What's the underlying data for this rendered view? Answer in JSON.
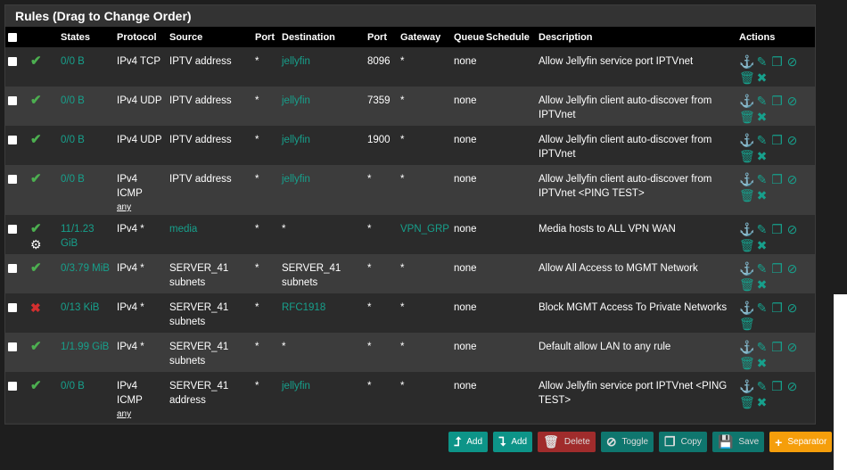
{
  "panel_title": "Rules (Drag to Change Order)",
  "columns": [
    "",
    "",
    "States",
    "Protocol",
    "Source",
    "Port",
    "Destination",
    "Port",
    "Gateway",
    "Queue",
    "Schedule",
    "Description",
    "Actions"
  ],
  "rules": [
    {
      "status": "pass",
      "states": "0/0 B",
      "protocol": "IPv4 TCP",
      "protocol_sub": "",
      "source": "IPTV address",
      "source_link": false,
      "sport": "*",
      "dest": "jellyfin",
      "dest_link": true,
      "dport": "8096",
      "gateway": "*",
      "gateway_link": false,
      "queue": "none",
      "schedule": "",
      "description": "Allow Jellyfin service port IPTVnet",
      "advanced": false,
      "removable": true
    },
    {
      "status": "pass",
      "states": "0/0 B",
      "protocol": "IPv4 UDP",
      "protocol_sub": "",
      "source": "IPTV address",
      "source_link": false,
      "sport": "*",
      "dest": "jellyfin",
      "dest_link": true,
      "dport": "7359",
      "gateway": "*",
      "gateway_link": false,
      "queue": "none",
      "schedule": "",
      "description": "Allow Jellyfin client auto-discover from IPTVnet",
      "advanced": false,
      "removable": true
    },
    {
      "status": "pass",
      "states": "0/0 B",
      "protocol": "IPv4 UDP",
      "protocol_sub": "",
      "source": "IPTV address",
      "source_link": false,
      "sport": "*",
      "dest": "jellyfin",
      "dest_link": true,
      "dport": "1900",
      "gateway": "*",
      "gateway_link": false,
      "queue": "none",
      "schedule": "",
      "description": "Allow Jellyfin client auto-discover from IPTVnet",
      "advanced": false,
      "removable": true
    },
    {
      "status": "pass",
      "states": "0/0 B",
      "protocol": "IPv4 ICMP",
      "protocol_sub": "any",
      "source": "IPTV address",
      "source_link": false,
      "sport": "*",
      "dest": "jellyfin",
      "dest_link": true,
      "dport": "*",
      "gateway": "*",
      "gateway_link": false,
      "queue": "none",
      "schedule": "",
      "description": "Allow Jellyfin client auto-discover from IPTVnet <PING TEST>",
      "advanced": false,
      "removable": true
    },
    {
      "status": "pass",
      "states": "11/1.23 GiB",
      "protocol": "IPv4 *",
      "protocol_sub": "",
      "source": "media",
      "source_link": true,
      "sport": "*",
      "dest": "*",
      "dest_link": false,
      "dport": "*",
      "gateway": "VPN_GRP",
      "gateway_link": true,
      "queue": "none",
      "schedule": "",
      "description": "Media hosts to ALL VPN WAN",
      "advanced": true,
      "removable": true
    },
    {
      "status": "pass",
      "states": "0/3.79 MiB",
      "protocol": "IPv4 *",
      "protocol_sub": "",
      "source": "SERVER_41 subnets",
      "source_link": false,
      "sport": "*",
      "dest": "SERVER_41 subnets",
      "dest_link": false,
      "dport": "*",
      "gateway": "*",
      "gateway_link": false,
      "queue": "none",
      "schedule": "",
      "description": "Allow All Access to MGMT Network",
      "advanced": false,
      "removable": true
    },
    {
      "status": "block",
      "states": "0/13 KiB",
      "protocol": "IPv4 *",
      "protocol_sub": "",
      "source": "SERVER_41 subnets",
      "source_link": false,
      "sport": "*",
      "dest": "RFC1918",
      "dest_link": true,
      "dport": "*",
      "gateway": "*",
      "gateway_link": false,
      "queue": "none",
      "schedule": "",
      "description": "Block MGMT Access To Private Networks",
      "advanced": false,
      "removable": false
    },
    {
      "status": "pass",
      "states": "1/1.99 GiB",
      "protocol": "IPv4 *",
      "protocol_sub": "",
      "source": "SERVER_41 subnets",
      "source_link": false,
      "sport": "*",
      "dest": "*",
      "dest_link": false,
      "dport": "*",
      "gateway": "*",
      "gateway_link": false,
      "queue": "none",
      "schedule": "",
      "description": "Default allow LAN to any rule",
      "advanced": false,
      "removable": true
    },
    {
      "status": "pass",
      "states": "0/0 B",
      "protocol": "IPv4 ICMP",
      "protocol_sub": "any",
      "source": "SERVER_41 address",
      "source_link": false,
      "sport": "*",
      "dest": "jellyfin",
      "dest_link": true,
      "dport": "*",
      "gateway": "*",
      "gateway_link": false,
      "queue": "none",
      "schedule": "",
      "description": "Allow Jellyfin service port IPTVnet <PING TEST>",
      "advanced": false,
      "removable": true
    }
  ],
  "buttons": {
    "add_top": "Add",
    "add_bottom": "Add",
    "delete": "Delete",
    "toggle": "Toggle",
    "copy": "Copy",
    "save": "Save",
    "separator": "Separator"
  },
  "colors": {
    "accent": "#17a08c",
    "pass": "#4caf50",
    "block": "#d32f2f",
    "separator": "#f59e0b",
    "delete": "#a02c2c"
  }
}
